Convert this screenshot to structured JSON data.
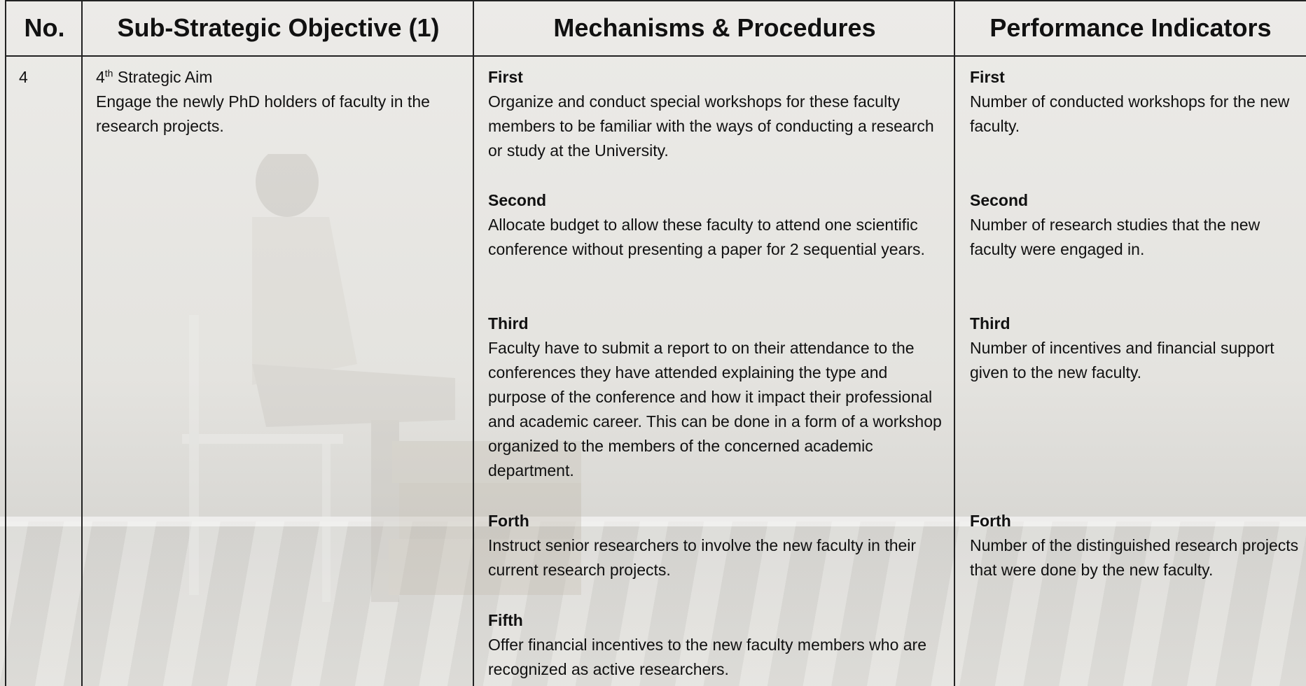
{
  "table": {
    "columns": [
      "No.",
      "Sub-Strategic Objective (1)",
      "Mechanisms & Procedures",
      "Performance Indicators"
    ],
    "row": {
      "number": "4",
      "aim_number": "4",
      "aim_suffix": "th",
      "aim_label": "Strategic Aim",
      "aim_description": "Engage the newly PhD holders of faculty  in the research projects.",
      "mechanisms": [
        {
          "heading": "First",
          "text": "Organize and conduct  special workshops for these faculty members to be familiar with the ways of conducting a research or study at the University."
        },
        {
          "heading": "Second",
          "text": "Allocate budget to allow these faculty to attend one scientific conference without presenting a paper for 2 sequential years."
        },
        {
          "heading": "Third",
          "text": "Faculty have to submit a report to on their attendance to the conferences they have attended explaining the type and purpose of the conference and how it impact their professional and academic career. This can be done in a form of a workshop organized to the members of the concerned academic department."
        },
        {
          "heading": "Forth",
          "text": "Instruct senior researchers to involve the new faculty in their current research projects."
        },
        {
          "heading": "Fifth",
          "text": "Offer financial incentives to the new faculty members who are recognized as active researchers."
        }
      ],
      "indicators": [
        {
          "heading": "First",
          "text": "Number of conducted workshops for the new faculty."
        },
        {
          "heading": "Second",
          "text": "Number of research studies that the new faculty were engaged in."
        },
        {
          "heading": "Third",
          "text": "Number of incentives and financial support given to the new faculty."
        },
        {
          "heading": "Forth",
          "text": "Number of the distinguished research projects that were done by the new faculty."
        }
      ]
    }
  }
}
